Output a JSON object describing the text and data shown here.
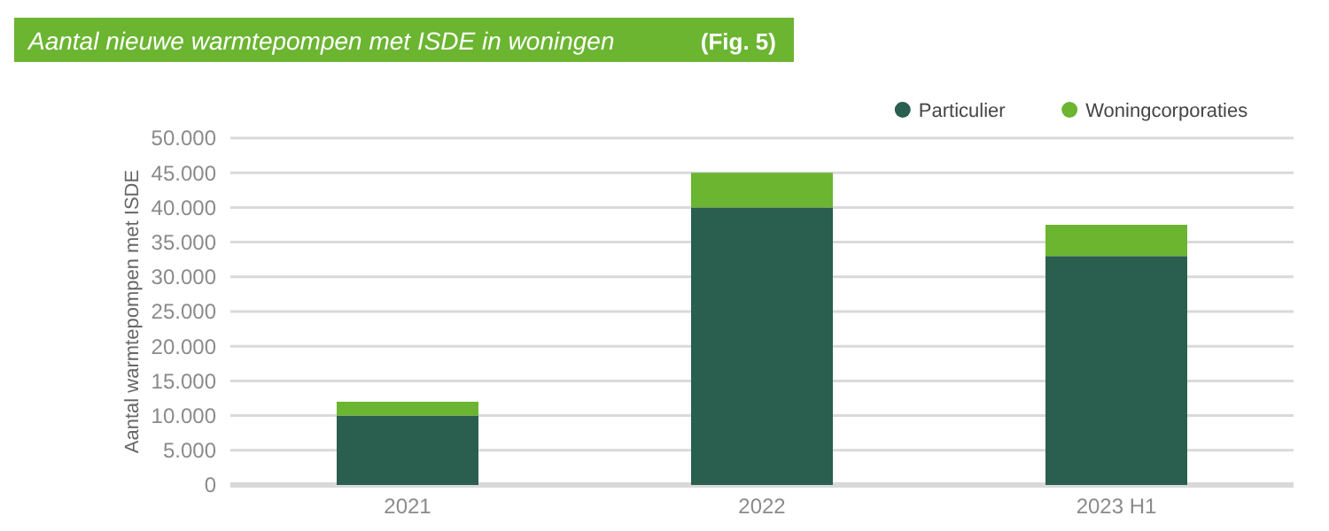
{
  "chart_data": {
    "type": "bar",
    "title": "Aantal nieuwe warmtepompen met ISDE in woningen",
    "annotations": [
      "(Fig. 5)"
    ],
    "ylabel": "Aantal warmtepompen met ISDE",
    "categories": [
      "2021",
      "2022",
      "2023 H1"
    ],
    "stacked": true,
    "series": [
      {
        "name": "Particulier",
        "color": "#2a5e4f",
        "values": [
          10000,
          40000,
          33000
        ]
      },
      {
        "name": "Woningcorporaties",
        "color": "#6bb531",
        "values": [
          2000,
          5000,
          4500
        ]
      }
    ],
    "ylim": [
      0,
      50000
    ],
    "yticks": [
      {
        "value": 0,
        "label": "0"
      },
      {
        "value": 5000,
        "label": "5.000"
      },
      {
        "value": 10000,
        "label": "10.000"
      },
      {
        "value": 15000,
        "label": "15.000"
      },
      {
        "value": 20000,
        "label": "20.000"
      },
      {
        "value": 25000,
        "label": "25.000"
      },
      {
        "value": 30000,
        "label": "30.000"
      },
      {
        "value": 35000,
        "label": "35.000"
      },
      {
        "value": 40000,
        "label": "40.000"
      },
      {
        "value": 45000,
        "label": "45.000"
      },
      {
        "value": 50000,
        "label": "50.000"
      }
    ],
    "grid": "y",
    "legend": "top right"
  }
}
